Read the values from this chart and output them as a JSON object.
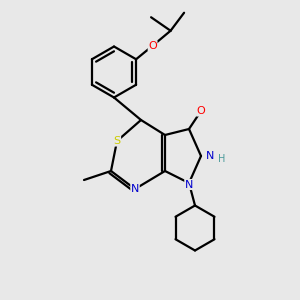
{
  "background_color": "#e8e8e8",
  "atom_colors": {
    "C": "#000000",
    "N": "#0000cd",
    "O": "#ff0000",
    "S": "#cccc00",
    "H": "#4a9a9a"
  },
  "bond_color": "#000000",
  "bond_width": 1.6,
  "figsize": [
    3.0,
    3.0
  ],
  "dpi": 100
}
